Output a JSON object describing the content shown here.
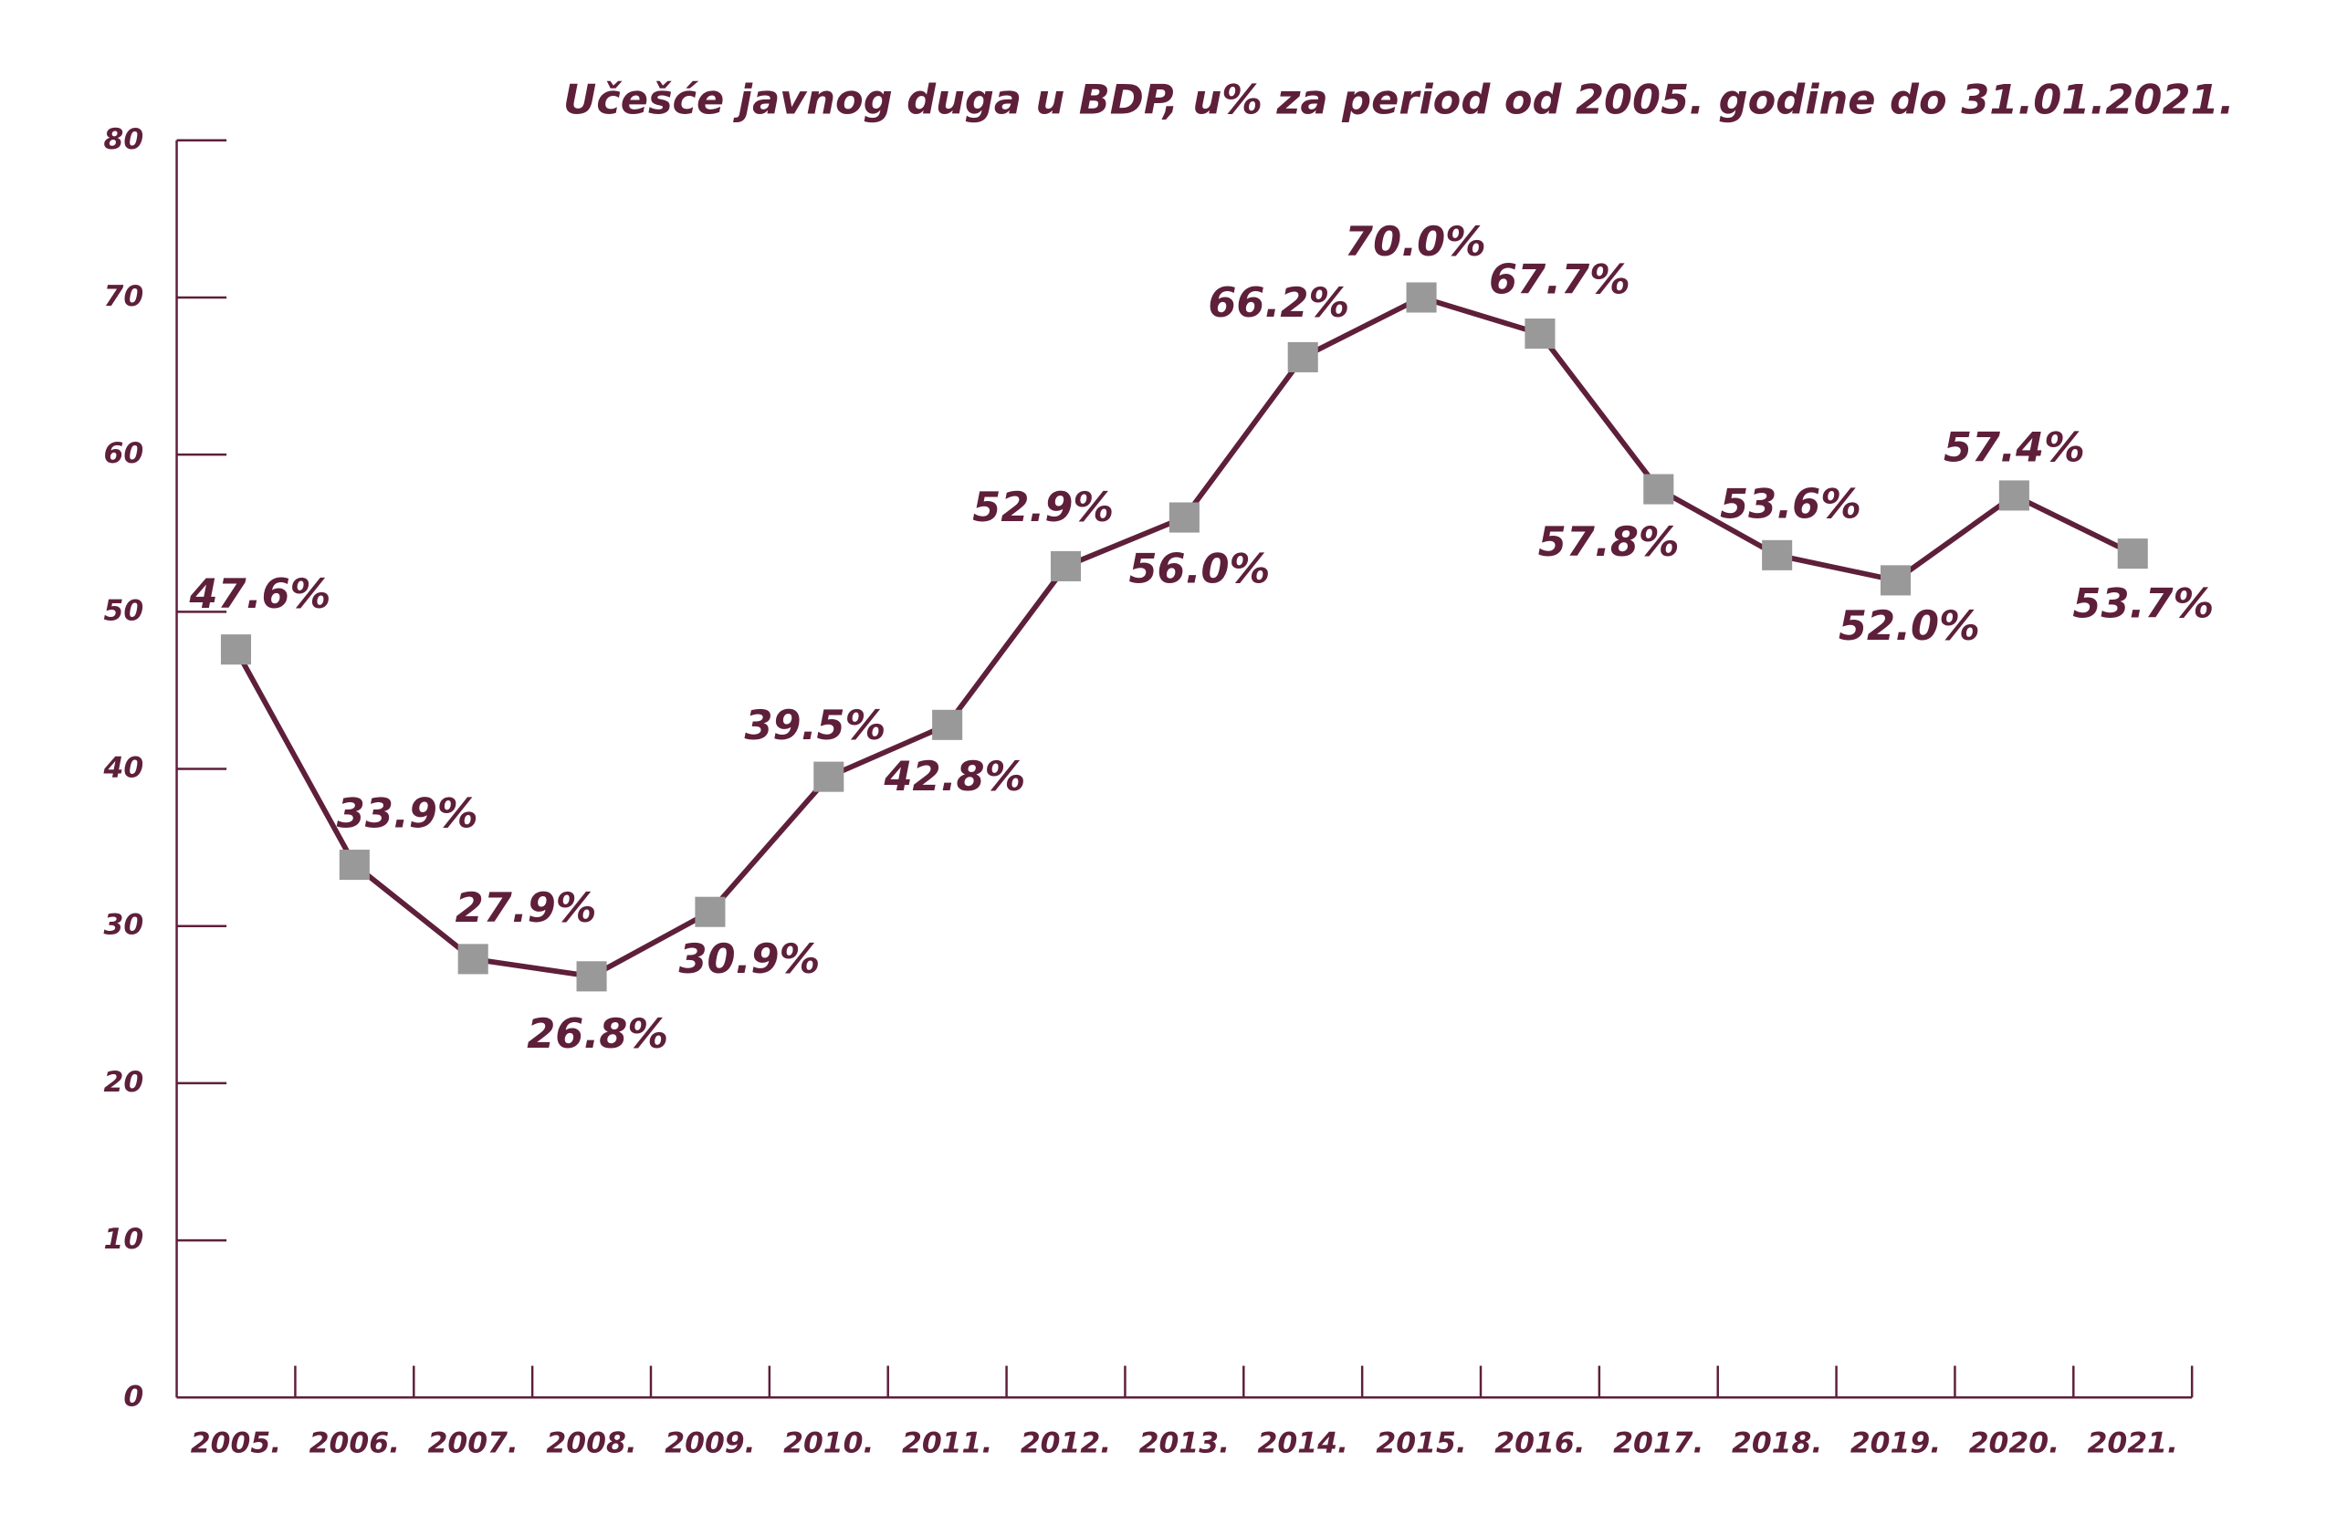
{
  "chart_data": {
    "type": "line",
    "title": "Učešće javnog duga u BDP, u% za period od 2005. godine do 31.01.2021.",
    "categories": [
      "2005.",
      "2006.",
      "2007.",
      "2008.",
      "2009.",
      "2010.",
      "2011.",
      "2012.",
      "2013.",
      "2014.",
      "2015.",
      "2016.",
      "2017.",
      "2018.",
      "2019.",
      "2020.",
      "2021."
    ],
    "series": [
      {
        "color": "#5e1f3a",
        "marker_color": "#999999",
        "values": [
          47.6,
          33.9,
          27.9,
          26.8,
          30.9,
          39.5,
          42.8,
          52.9,
          56.0,
          66.2,
          70.0,
          67.7,
          57.8,
          53.6,
          52.0,
          57.4,
          53.7
        ],
        "value_labels": [
          "47.6%",
          "33.9%",
          "27.9%",
          "26.8%",
          "30.9%",
          "39.5%",
          "42.8%",
          "52.9%",
          "56.0%",
          "66.2%",
          "70.0%",
          "67.7%",
          "57.8%",
          "53.6%",
          "52.0%",
          "57.4%",
          "53.7%"
        ]
      }
    ],
    "ylim": [
      0,
      80
    ],
    "yticks": [
      0,
      10,
      20,
      30,
      40,
      50,
      60,
      70,
      80
    ],
    "grid": false
  }
}
